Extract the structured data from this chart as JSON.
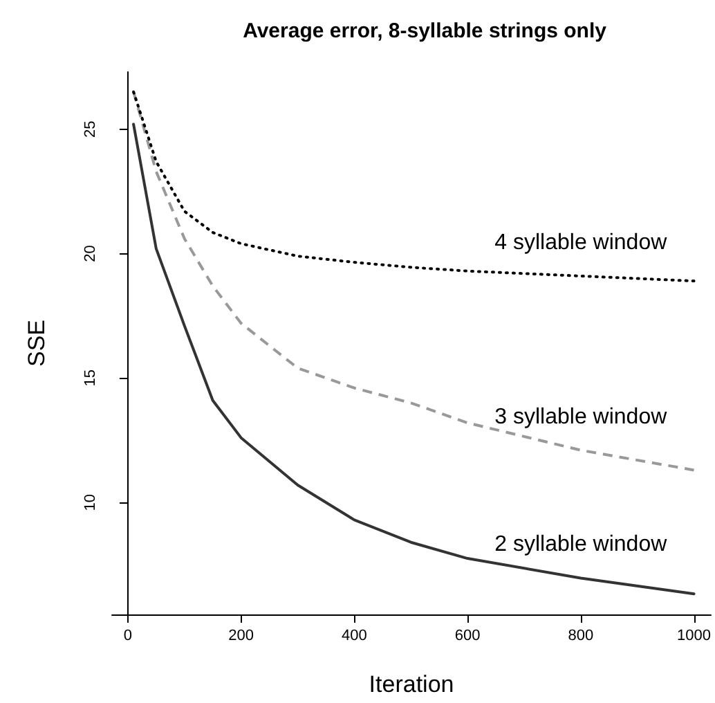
{
  "chart_data": {
    "type": "line",
    "title": "Average error, 8-syllable strings only",
    "xlabel": "Iteration",
    "ylabel": "SSE",
    "x": [
      10,
      50,
      100,
      150,
      200,
      300,
      400,
      500,
      600,
      800,
      1000
    ],
    "series": [
      {
        "name": "2 syllable window",
        "color": "#333333",
        "line_style": "solid",
        "values": [
          25.2,
          20.2,
          17.1,
          14.1,
          12.6,
          10.7,
          9.3,
          8.4,
          7.75,
          6.96,
          6.33
        ]
      },
      {
        "name": "3 syllable window",
        "color": "#999999",
        "line_style": "dashed",
        "values": [
          26.5,
          23.3,
          20.6,
          18.7,
          17.2,
          15.4,
          14.6,
          14.0,
          13.2,
          12.1,
          11.3
        ]
      },
      {
        "name": "4 syllable window",
        "color": "#000000",
        "line_style": "dotted",
        "values": [
          26.5,
          23.7,
          21.7,
          20.85,
          20.4,
          19.9,
          19.65,
          19.45,
          19.3,
          19.1,
          18.9
        ]
      }
    ],
    "xlim": [
      -28,
      1030
    ],
    "ylim": [
      5.5,
      27.3
    ],
    "xticks": [
      0,
      200,
      400,
      600,
      800,
      1000
    ],
    "yticks": [
      10,
      15,
      20,
      25
    ],
    "grid": false,
    "legend": false,
    "marker": "none"
  }
}
